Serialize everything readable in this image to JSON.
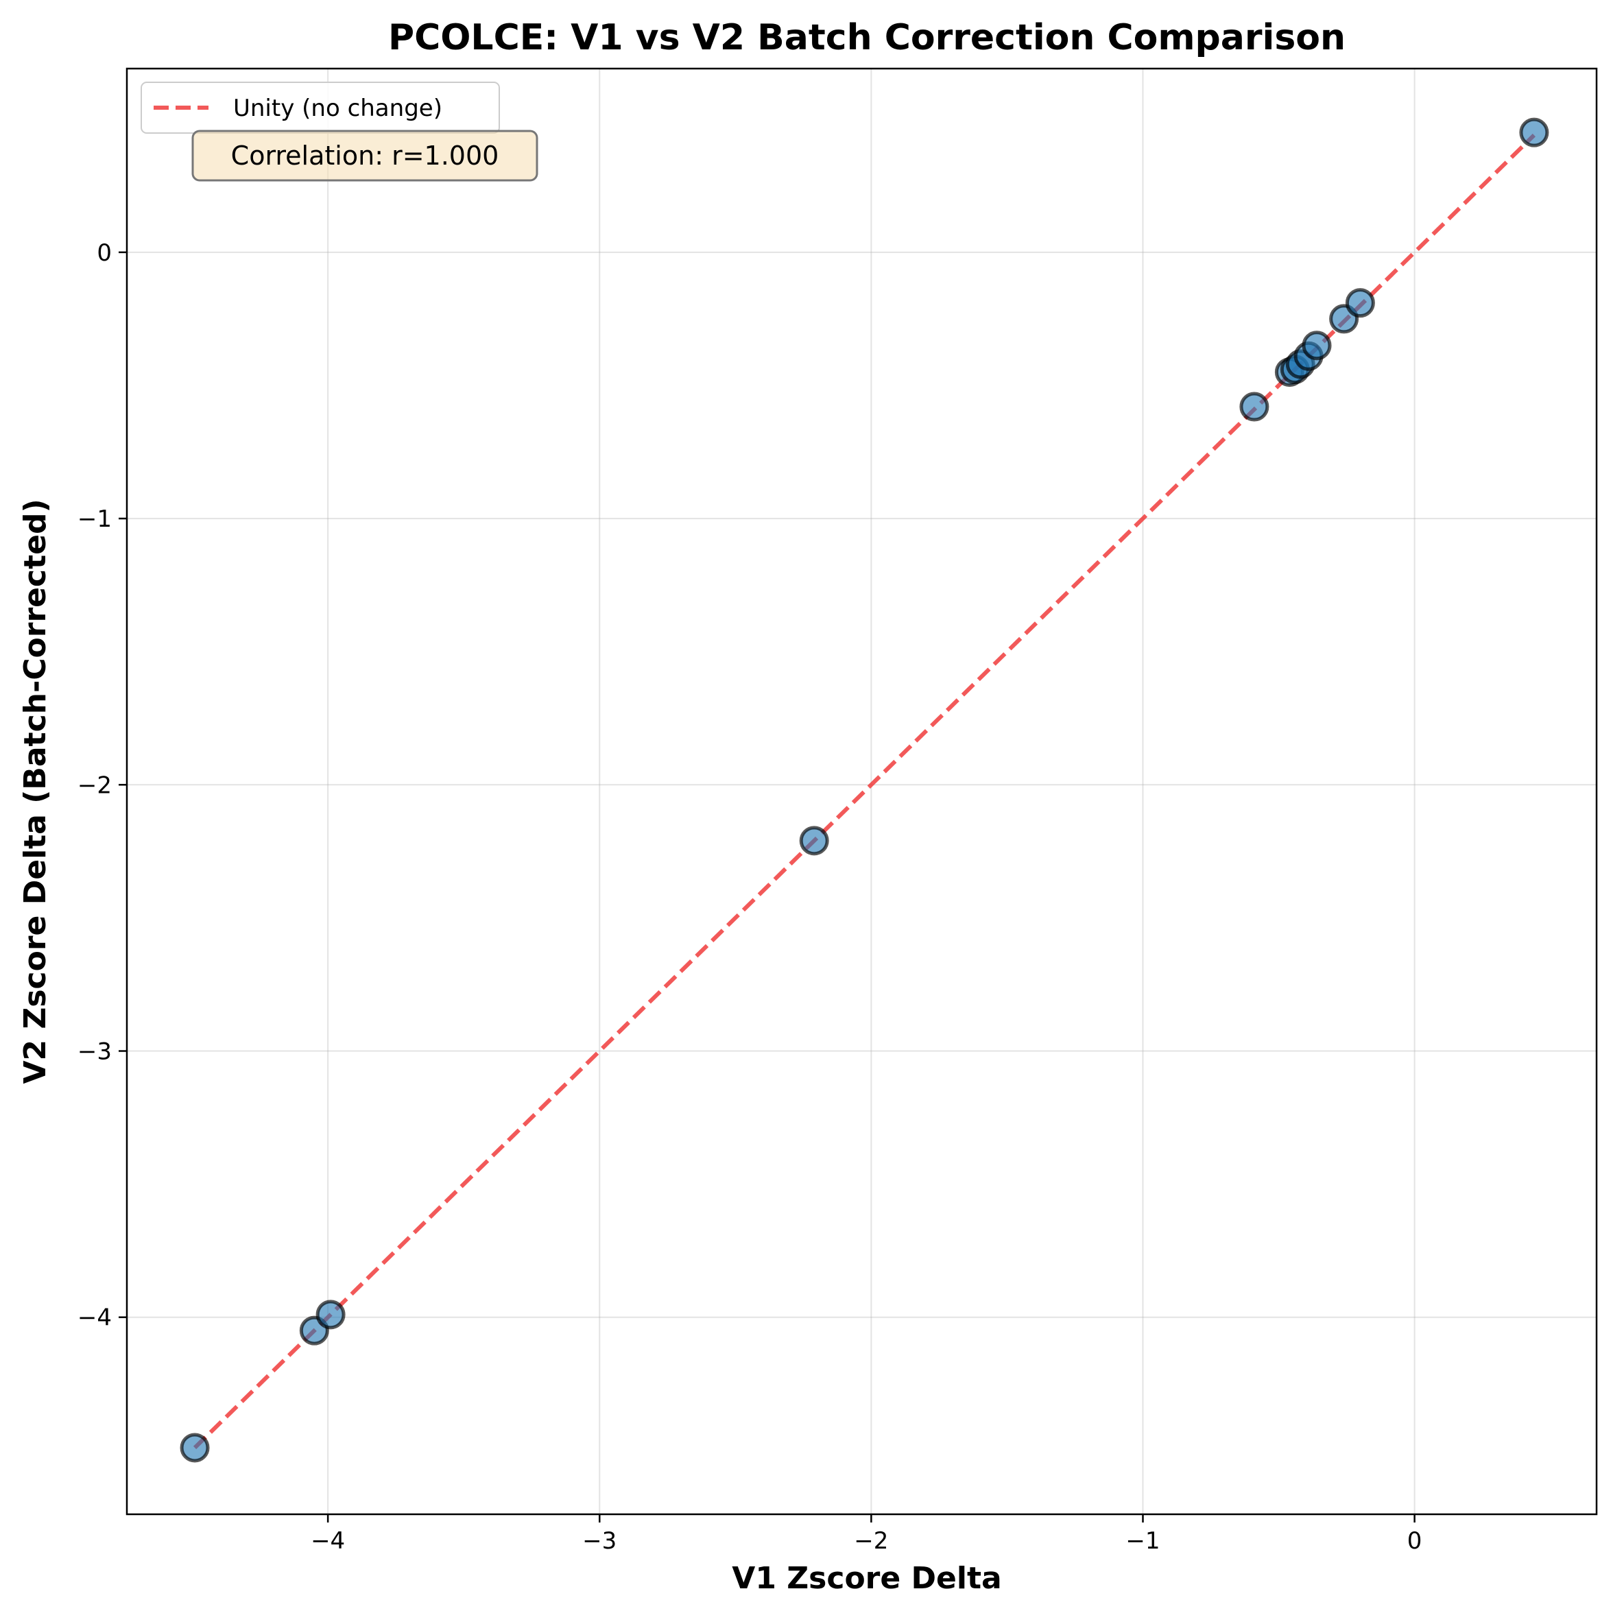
{
  "chart_data": {
    "type": "scatter",
    "title": "PCOLCE: V1 vs V2 Batch Correction Comparison",
    "xlabel": "V1 Zscore Delta",
    "ylabel": "V2 Zscore Delta (Batch-Corrected)",
    "xlim": [
      -4.74,
      0.67
    ],
    "ylim": [
      -4.74,
      0.69
    ],
    "xticks": [
      -4,
      -3,
      -2,
      -1,
      0
    ],
    "yticks": [
      0,
      -1,
      -2,
      -3,
      -4
    ],
    "grid": true,
    "legend_position": "top-left",
    "legend": [
      "Unity (no change)"
    ],
    "annotation": "Correlation: r=1.000",
    "points": [
      {
        "x": -4.49,
        "y": -4.49
      },
      {
        "x": -4.05,
        "y": -4.05
      },
      {
        "x": -3.99,
        "y": -3.99
      },
      {
        "x": -2.21,
        "y": -2.21
      },
      {
        "x": -0.59,
        "y": -0.58
      },
      {
        "x": -0.46,
        "y": -0.45
      },
      {
        "x": -0.44,
        "y": -0.44
      },
      {
        "x": -0.42,
        "y": -0.42
      },
      {
        "x": -0.39,
        "y": -0.39
      },
      {
        "x": -0.36,
        "y": -0.35
      },
      {
        "x": -0.26,
        "y": -0.25
      },
      {
        "x": -0.2,
        "y": -0.19
      },
      {
        "x": 0.44,
        "y": 0.45
      }
    ],
    "unity_line": {
      "x": [
        -4.49,
        0.44
      ],
      "y": [
        -4.49,
        0.44
      ]
    },
    "colors": {
      "point_fill": "#1f77b4",
      "point_edge": "#000000",
      "unity_line": "#f03c3c",
      "annotation_bg": "#f5deb3"
    }
  }
}
